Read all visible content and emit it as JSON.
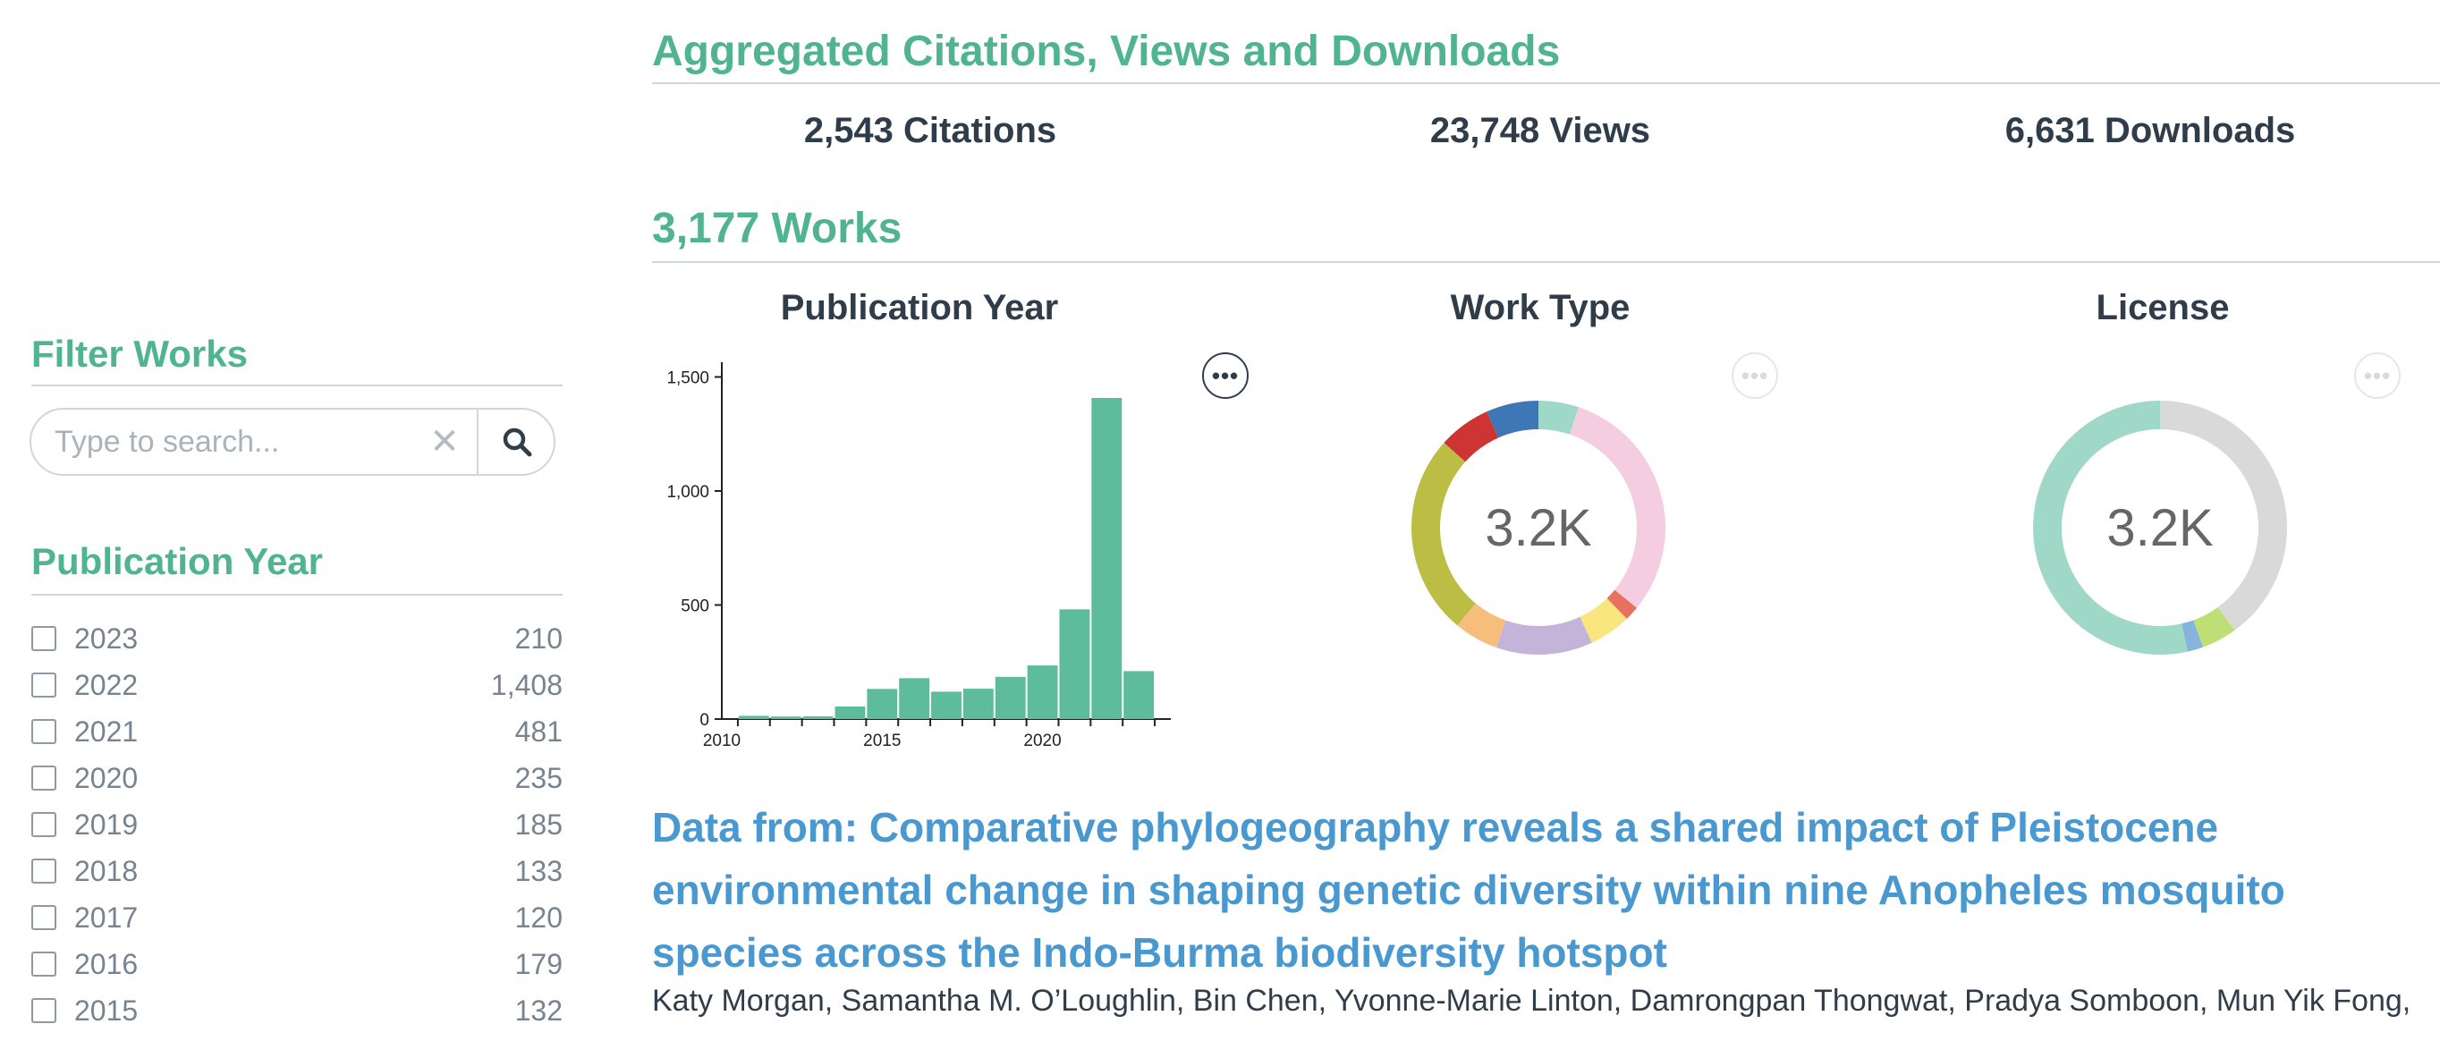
{
  "aggregated": {
    "title": "Aggregated Citations, Views and Downloads",
    "citations": "2,543 Citations",
    "views": "23,748 Views",
    "downloads": "6,631 Downloads"
  },
  "works": {
    "title": "3,177 Works"
  },
  "sidebar": {
    "filter_title": "Filter Works",
    "search": {
      "placeholder": "Type to search...",
      "value": ""
    },
    "facet_title": "Publication Year",
    "years": [
      {
        "label": "2023",
        "count": "210"
      },
      {
        "label": "2022",
        "count": "1,408"
      },
      {
        "label": "2021",
        "count": "481"
      },
      {
        "label": "2020",
        "count": "235"
      },
      {
        "label": "2019",
        "count": "185"
      },
      {
        "label": "2018",
        "count": "133"
      },
      {
        "label": "2017",
        "count": "120"
      },
      {
        "label": "2016",
        "count": "179"
      },
      {
        "label": "2015",
        "count": "132"
      }
    ]
  },
  "charts": {
    "pub_year_title": "Publication Year",
    "work_type_title": "Work Type",
    "license_title": "License",
    "work_type_center": "3.2K",
    "license_center": "3.2K",
    "menu_label": "•••"
  },
  "chart_data": [
    {
      "type": "bar",
      "title": "Publication Year",
      "x": [
        2011,
        2012,
        2013,
        2014,
        2015,
        2016,
        2017,
        2018,
        2019,
        2020,
        2021,
        2022,
        2023
      ],
      "values": [
        14,
        11,
        12,
        55,
        132,
        179,
        120,
        133,
        185,
        235,
        481,
        1408,
        210
      ],
      "xticks": [
        "2010",
        "2015",
        "2020"
      ],
      "yticks": [
        "0",
        "500",
        "1,000",
        "1,500"
      ],
      "ylim": [
        0,
        1600
      ],
      "xlim": [
        2010,
        2024
      ],
      "color": "#5cbc9b",
      "grid": false
    },
    {
      "type": "pie",
      "title": "Work Type",
      "center_label": "3.2K",
      "slices": [
        {
          "value": 5.0,
          "color": "#9fd8c7"
        },
        {
          "value": 30.0,
          "color": "#f5cde0"
        },
        {
          "value": 1.8,
          "color": "#e8705e"
        },
        {
          "value": 5.2,
          "color": "#f9e67f"
        },
        {
          "value": 12.0,
          "color": "#c5b4da"
        },
        {
          "value": 5.5,
          "color": "#f7bd7c"
        },
        {
          "value": 25.0,
          "color": "#bcbd45"
        },
        {
          "value": 6.5,
          "color": "#cd3433"
        },
        {
          "value": 6.5,
          "color": "#3d77b5"
        }
      ]
    },
    {
      "type": "pie",
      "title": "License",
      "center_label": "3.2K",
      "slices": [
        {
          "value": 40.0,
          "color": "#d9d9d9"
        },
        {
          "value": 4.5,
          "color": "#bedf76"
        },
        {
          "value": 2.0,
          "color": "#86b4dd"
        },
        {
          "value": 53.5,
          "color": "#9fd8c7"
        }
      ]
    }
  ],
  "result": {
    "title": "Data from: Comparative phylogeography reveals a shared impact of Pleistocene environmental change in shaping genetic diversity within nine Anopheles mosquito species across the Indo-Burma biodiversity hotspot",
    "authors": "Katy Morgan, Samantha M. O’Loughlin, Bin Chen, Yvonne-Marie Linton, Damrongpan Thongwat, Pradya Somboon, Mun Yik Fong,"
  }
}
